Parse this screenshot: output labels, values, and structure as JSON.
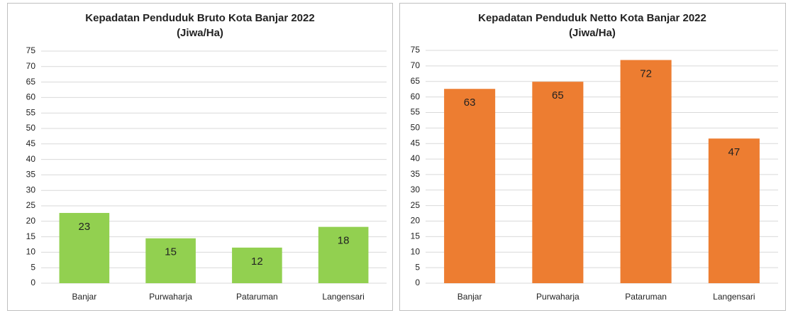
{
  "chart_data": [
    {
      "type": "bar",
      "title": "Kepadatan Penduduk Bruto Kota Banjar 2022",
      "subtitle": "(Jiwa/Ha)",
      "categories": [
        "Banjar",
        "Purwaharja",
        "Pataruman",
        "Langensari"
      ],
      "values": [
        22.7,
        14.5,
        11.5,
        18.2
      ],
      "value_labels": [
        "23",
        "15",
        "12",
        "18"
      ],
      "color": "#92d050",
      "ylim": [
        0,
        75
      ],
      "yticks": [
        0,
        5,
        10,
        15,
        20,
        25,
        30,
        35,
        40,
        45,
        50,
        55,
        60,
        65,
        70,
        75
      ],
      "grid": true
    },
    {
      "type": "bar",
      "title": "Kepadatan Penduduk Netto Kota Banjar 2022",
      "subtitle": "(Jiwa/Ha)",
      "categories": [
        "Banjar",
        "Purwaharja",
        "Pataruman",
        "Langensari"
      ],
      "values": [
        62.6,
        64.9,
        71.9,
        46.6
      ],
      "value_labels": [
        "63",
        "65",
        "72",
        "47"
      ],
      "color": "#ed7d31",
      "ylim": [
        0,
        75
      ],
      "yticks": [
        0,
        5,
        10,
        15,
        20,
        25,
        30,
        35,
        40,
        45,
        50,
        55,
        60,
        65,
        70,
        75
      ],
      "grid": true
    }
  ]
}
